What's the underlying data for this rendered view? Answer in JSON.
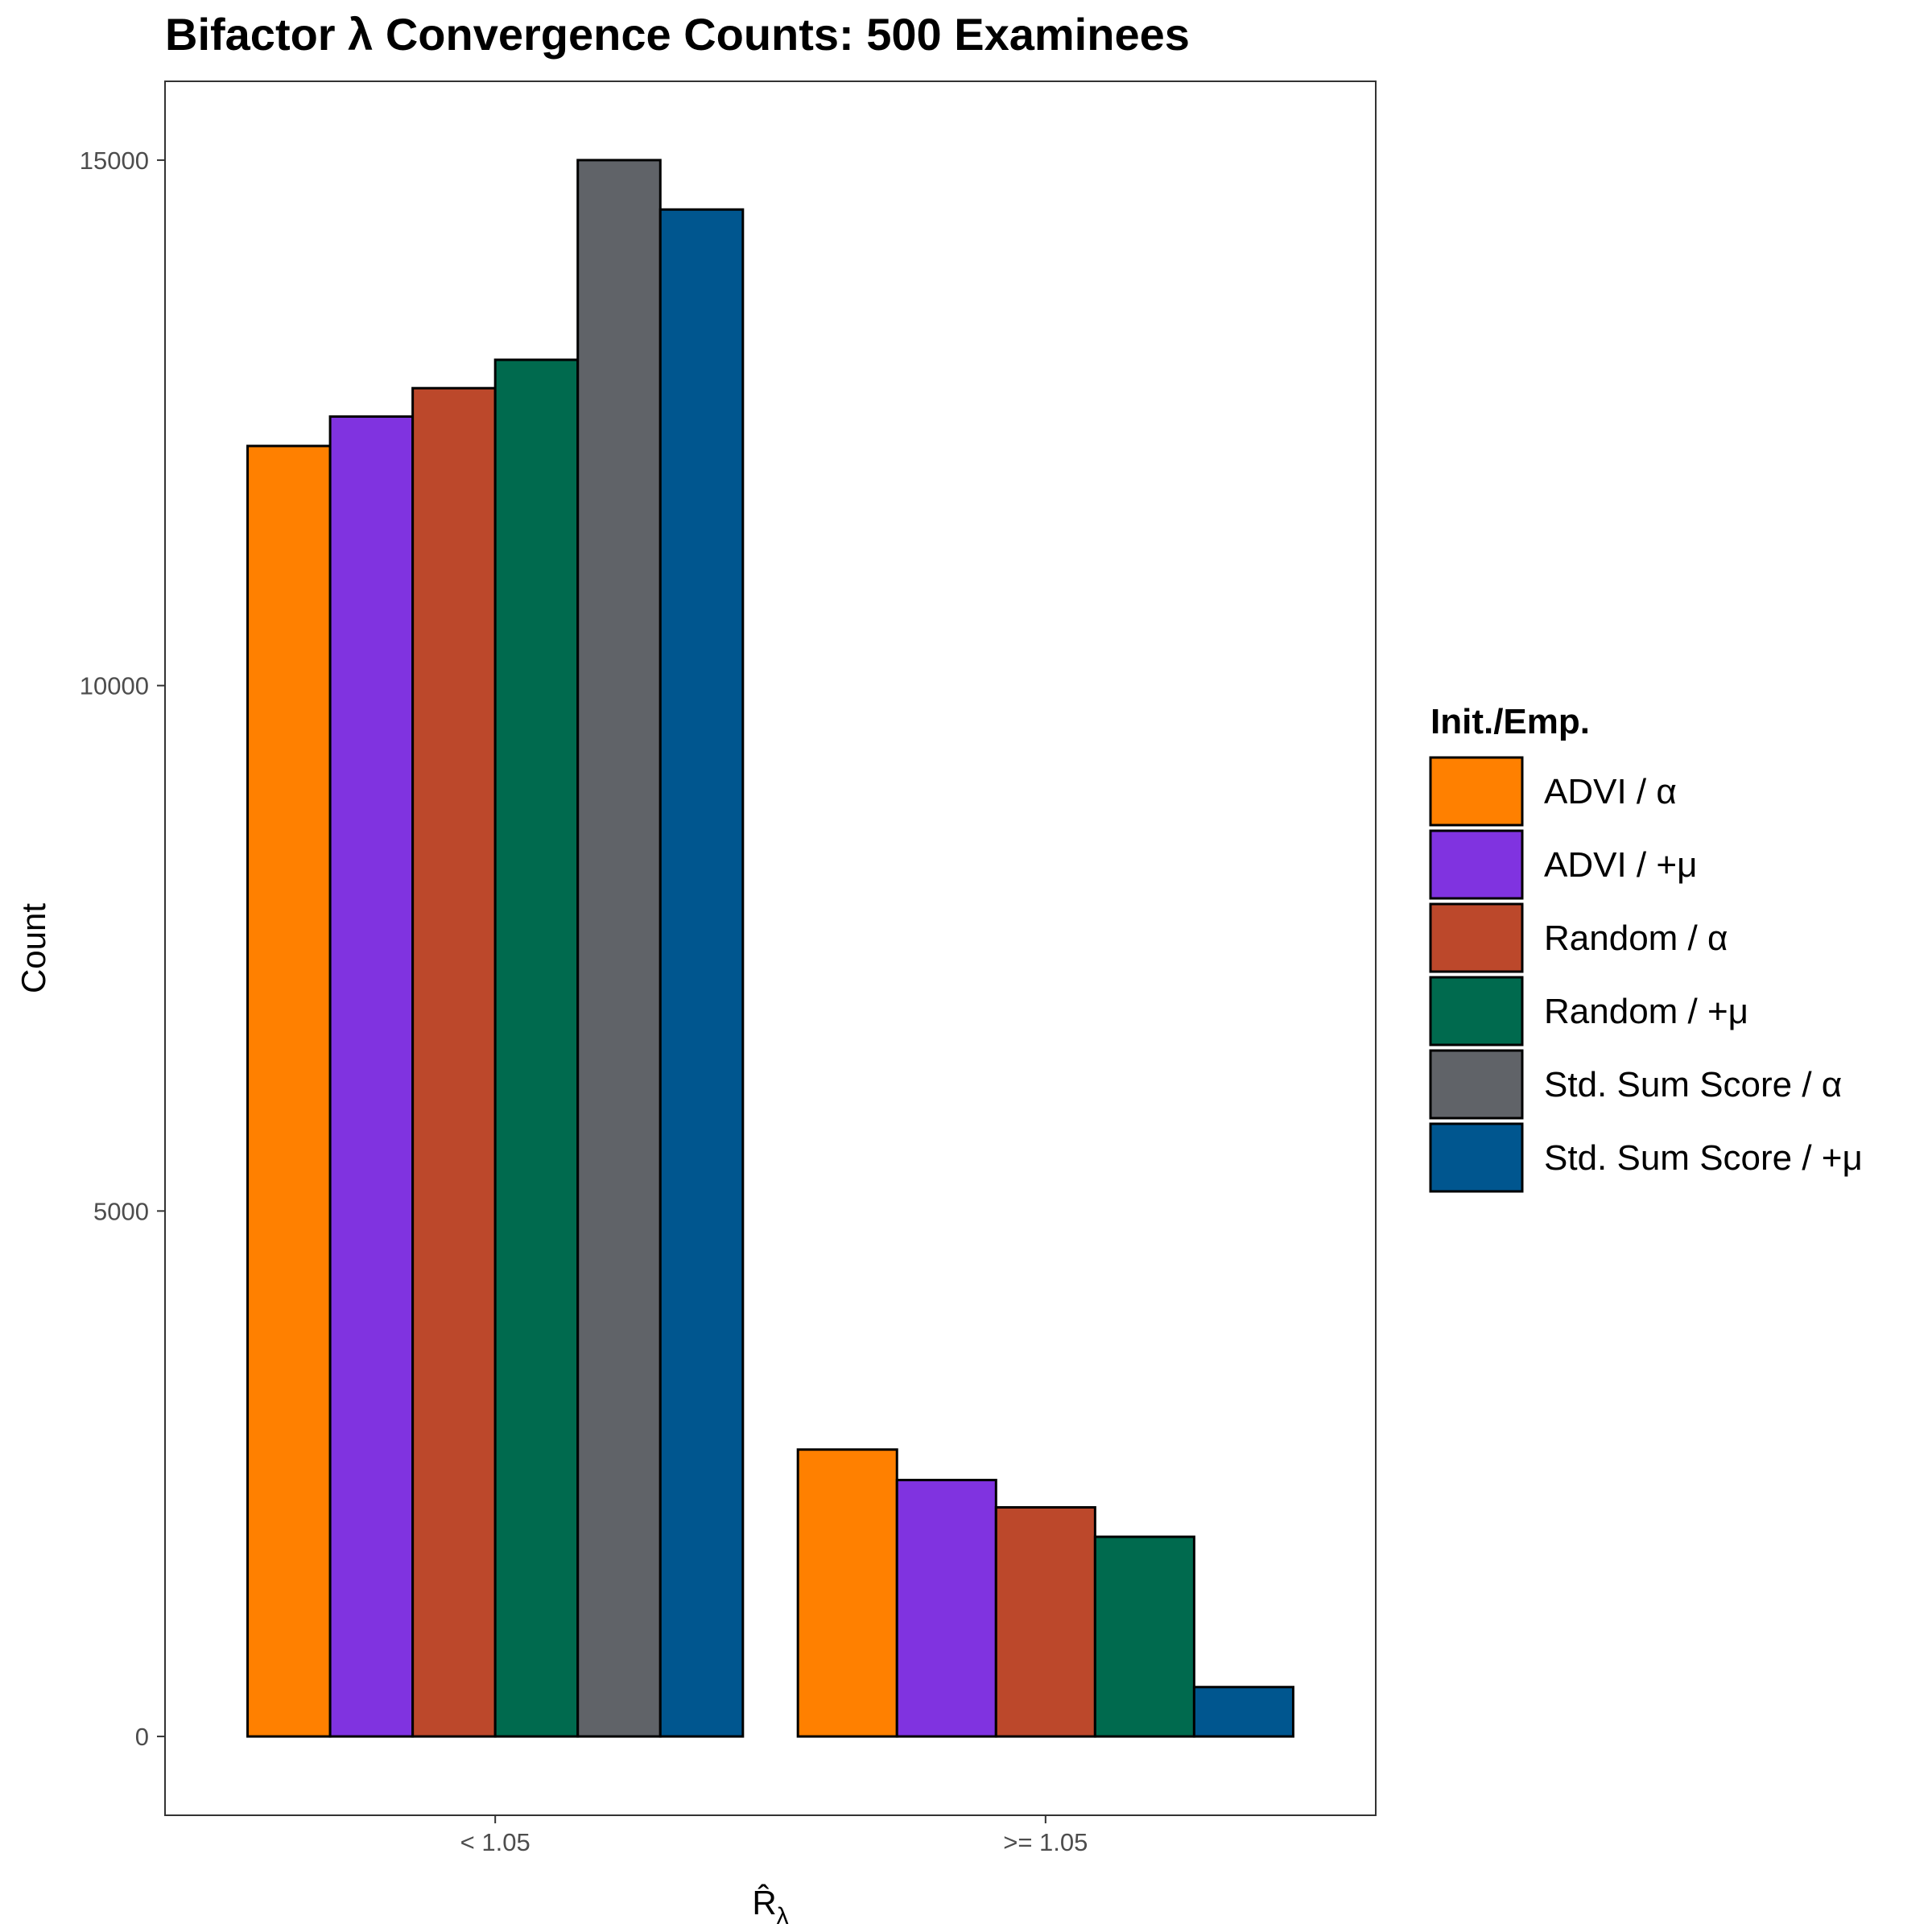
{
  "chart_data": {
    "type": "bar",
    "title": "Bifactor λ Convergence Counts: 500 Examinees",
    "xlabel": "R̂",
    "xlabel_subscript": "λ",
    "ylabel": "Count",
    "categories": [
      "< 1.05",
      ">= 1.05"
    ],
    "y_ticks": [
      0,
      5000,
      10000,
      15000
    ],
    "ylim": [
      -750,
      15750
    ],
    "grid": false,
    "legend": {
      "title": "Init./Emp.",
      "position": "right"
    },
    "series": [
      {
        "name": "ADVI / α",
        "color": "#FF8000",
        "values": [
          12280,
          2730
        ]
      },
      {
        "name": "ADVI / +μ",
        "color": "#8033E0",
        "values": [
          12560,
          2440
        ]
      },
      {
        "name": "Random / α",
        "color": "#BC482B",
        "values": [
          12830,
          2180
        ]
      },
      {
        "name": "Random / +μ",
        "color": "#006A4E",
        "values": [
          13100,
          1900
        ]
      },
      {
        "name": "Std. Sum Score / α",
        "color": "#606368",
        "values": [
          15000,
          0
        ]
      },
      {
        "name": "Std. Sum Score / +μ",
        "color": "#00568F",
        "values": [
          14530,
          470
        ]
      }
    ]
  }
}
